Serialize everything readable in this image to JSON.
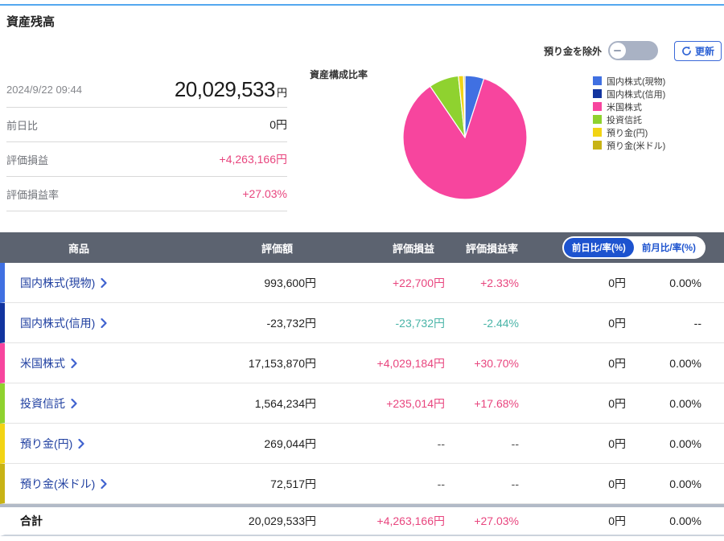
{
  "header": {
    "title": "資産残高"
  },
  "controls": {
    "toggle_label": "預り金を除外",
    "refresh_label": "更新"
  },
  "summary": {
    "timestamp": "2024/9/22 09:44",
    "total_value": "20,029,533",
    "total_unit": "円",
    "rows": [
      {
        "label": "前日比",
        "value": "0円"
      },
      {
        "label": "評価損益",
        "value": "+4,263,166円"
      },
      {
        "label": "評価損益率",
        "value": "+27.03%"
      }
    ]
  },
  "chart_data": {
    "type": "pie",
    "title": "資産構成比率",
    "legend_position": "right",
    "legend": [
      {
        "label": "国内株式(現物)",
        "color": "#4070E2"
      },
      {
        "label": "国内株式(信用)",
        "color": "#12349F"
      },
      {
        "label": "米国株式",
        "color": "#F7459E"
      },
      {
        "label": "投資信託",
        "color": "#8FD22F"
      },
      {
        "label": "預り金(円)",
        "color": "#F2D414"
      },
      {
        "label": "預り金(米ドル)",
        "color": "#C8B315"
      }
    ],
    "slices": [
      {
        "label": "国内株式(現物)",
        "percent": 4.96,
        "color": "#4070E2"
      },
      {
        "label": "米国株式",
        "percent": 85.55,
        "color": "#F7459E"
      },
      {
        "label": "投資信託",
        "percent": 7.8,
        "color": "#8FD22F"
      },
      {
        "label": "預り金(円)",
        "percent": 1.34,
        "color": "#F2D414"
      },
      {
        "label": "預り金(米ドル)",
        "percent": 0.36,
        "color": "#C8B315"
      }
    ]
  },
  "table": {
    "headers": [
      "商品",
      "評価額",
      "評価損益",
      "評価損益率"
    ],
    "toggle_buttons": [
      {
        "label": "前日比/率(%)",
        "selected": true
      },
      {
        "label": "前月比/率(%)",
        "selected": false
      }
    ],
    "rows": [
      {
        "name": "国内株式(現物)",
        "strip_color": "#4070E2",
        "value": "993,600円",
        "pl": "+22,700円",
        "pl_color": "pink",
        "rate": "+2.33%",
        "rate_color": "pink",
        "day": "0円",
        "month": "0.00%"
      },
      {
        "name": "国内株式(信用)",
        "strip_color": "#12349F",
        "value": "-23,732円",
        "pl": "-23,732円",
        "pl_color": "teal",
        "rate": "-2.44%",
        "rate_color": "teal",
        "day": "0円",
        "month": "--"
      },
      {
        "name": "米国株式",
        "strip_color": "#F7459E",
        "value": "17,153,870円",
        "pl": "+4,029,184円",
        "pl_color": "pink",
        "rate": "+30.70%",
        "rate_color": "pink",
        "day": "0円",
        "month": "0.00%"
      },
      {
        "name": "投資信託",
        "strip_color": "#8FD22F",
        "value": "1,564,234円",
        "pl": "+235,014円",
        "pl_color": "pink",
        "rate": "+17.68%",
        "rate_color": "pink",
        "day": "0円",
        "month": "0.00%"
      },
      {
        "name": "預り金(円)",
        "strip_color": "#F2D414",
        "value": "269,044円",
        "pl": "--",
        "pl_color": "gray",
        "rate": "--",
        "rate_color": "gray",
        "day": "0円",
        "month": "0.00%"
      },
      {
        "name": "預り金(米ドル)",
        "strip_color": "#C8B315",
        "value": "72,517円",
        "pl": "--",
        "pl_color": "gray",
        "rate": "--",
        "rate_color": "gray",
        "day": "0円",
        "month": "0.00%"
      }
    ],
    "total": {
      "name": "合計",
      "value": "20,029,533円",
      "pl": "+4,263,166円",
      "rate": "+27.03%",
      "day": "0円",
      "month": "0.00%"
    }
  },
  "colors": {
    "accent_blue": "#1d53cf",
    "refresh_blue": "#2d62d5",
    "positive_pink": "#e8457e",
    "negative_teal": "#49b4a7",
    "header_gray": "#5c6370",
    "top_line_blue": "#54a8ef"
  }
}
